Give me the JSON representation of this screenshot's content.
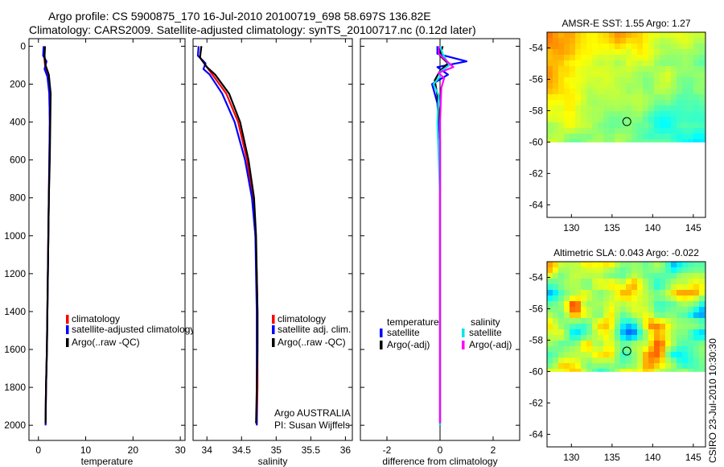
{
  "header": {
    "title_line1": "Argo profile: CS 5900875_170 16-Jul-2010 20100719_698 58.697S 136.82E",
    "title_line2": "Climatology: CARS2009. Satellite-adjusted climatology: synTS_20100717.nc (0.12d later)"
  },
  "side_label": "CSIRO 23-Jul-2010 10:30:30",
  "colors": {
    "climatology": "#ff0000",
    "satellite_adjusted": "#0000ff",
    "argo": "#000000",
    "salinity_satellite": "#00e5e5",
    "salinity_argo": "#ff00ff"
  },
  "chart_data": [
    {
      "id": "temperature",
      "type": "line",
      "xlabel": "temperature",
      "xlim": [
        -2,
        31
      ],
      "ylim": [
        2080,
        -40
      ],
      "xticks": [
        0,
        10,
        20,
        30
      ],
      "yticks": [
        0,
        200,
        400,
        600,
        800,
        1000,
        1200,
        1400,
        1600,
        1800,
        2000
      ],
      "legend": [
        {
          "label": "climatology",
          "color": "#ff0000"
        },
        {
          "label": "satellite-adjusted climatology",
          "color": "#0000ff"
        },
        {
          "label": "Argo(..raw -QC)",
          "color": "#000000"
        }
      ],
      "series": [
        {
          "name": "climatology",
          "color": "#ff0000",
          "x": [
            1.3,
            1.2,
            1.4,
            2.0,
            2.3,
            2.4,
            2.3,
            2.2,
            2.1,
            2.0,
            1.9,
            1.8,
            1.6,
            1.5
          ],
          "y": [
            0,
            50,
            100,
            150,
            250,
            400,
            600,
            800,
            1000,
            1200,
            1400,
            1600,
            1800,
            2000
          ]
        },
        {
          "name": "satellite-adjusted",
          "color": "#0000ff",
          "x": [
            1.1,
            1.0,
            1.7,
            1.3,
            1.9,
            2.3,
            2.4,
            2.3,
            2.2,
            2.1,
            2.0,
            1.9,
            1.8,
            1.6,
            1.5
          ],
          "y": [
            0,
            50,
            80,
            120,
            160,
            250,
            400,
            600,
            800,
            1000,
            1200,
            1400,
            1600,
            1800,
            2000
          ]
        },
        {
          "name": "Argo",
          "color": "#000000",
          "x": [
            1.4,
            1.3,
            1.5,
            2.2,
            2.6,
            2.5,
            2.4,
            2.2,
            2.1,
            2.0,
            1.9,
            1.8,
            1.6,
            1.5
          ],
          "y": [
            0,
            50,
            100,
            150,
            250,
            400,
            600,
            800,
            1000,
            1200,
            1400,
            1600,
            1800,
            1990
          ]
        }
      ]
    },
    {
      "id": "salinity",
      "type": "line",
      "xlabel": "salinity",
      "xlim": [
        33.8,
        36.1
      ],
      "ylim": [
        2080,
        -40
      ],
      "xticks": [
        34,
        34.5,
        35,
        35.5,
        36
      ],
      "legend": [
        {
          "label": "climatology",
          "color": "#ff0000"
        },
        {
          "label": "satellite adj. clim.",
          "color": "#0000ff"
        },
        {
          "label": "Argo(..raw -QC)",
          "color": "#000000"
        }
      ],
      "annotation": [
        "Argo AUSTRALIA",
        "PI: Susan Wijffels"
      ],
      "series": [
        {
          "name": "climatology",
          "color": "#ff0000",
          "x": [
            33.92,
            33.9,
            34.0,
            34.08,
            34.28,
            34.45,
            34.58,
            34.66,
            34.7,
            34.72,
            34.73,
            34.73,
            34.73,
            34.72
          ],
          "y": [
            0,
            60,
            110,
            150,
            250,
            400,
            600,
            800,
            1000,
            1200,
            1400,
            1600,
            1800,
            2000
          ]
        },
        {
          "name": "satellite-adjusted",
          "color": "#0000ff",
          "x": [
            33.88,
            33.87,
            33.98,
            33.95,
            34.04,
            34.22,
            34.4,
            34.55,
            34.65,
            34.7,
            34.71,
            34.72,
            34.72,
            34.72,
            34.72
          ],
          "y": [
            0,
            50,
            90,
            120,
            150,
            250,
            400,
            600,
            800,
            1000,
            1200,
            1400,
            1600,
            1800,
            2000
          ]
        },
        {
          "name": "Argo",
          "color": "#000000",
          "x": [
            33.92,
            33.9,
            34.0,
            34.12,
            34.32,
            34.48,
            34.6,
            34.68,
            34.71,
            34.72,
            34.73,
            34.73,
            34.72,
            34.71
          ],
          "y": [
            0,
            60,
            110,
            150,
            250,
            400,
            600,
            800,
            1000,
            1200,
            1400,
            1600,
            1800,
            1990
          ]
        }
      ]
    },
    {
      "id": "difference",
      "type": "line",
      "xlabel": "difference from climatology",
      "xlim": [
        -3.0,
        3.0
      ],
      "ylim": [
        2080,
        -40
      ],
      "xticks": [
        -2,
        0,
        2
      ],
      "legend_headers": [
        "temperature",
        "salinity"
      ],
      "legend": [
        {
          "label": "satellite",
          "color": "#0000ff"
        },
        {
          "label": "Argo(-adj)",
          "color": "#000000"
        },
        {
          "label": "satellite",
          "color": "#00e5e5"
        },
        {
          "label": "Argo(-adj)",
          "color": "#ff00ff"
        }
      ],
      "series": [
        {
          "name": "temperature satellite",
          "color": "#0000ff",
          "x": [
            -0.1,
            -0.1,
            1.0,
            -0.1,
            0.3,
            -0.3,
            -0.1,
            0.0,
            0.0,
            0.0,
            0.0,
            0.0,
            0.0,
            0.0
          ],
          "y": [
            0,
            40,
            80,
            110,
            150,
            200,
            300,
            500,
            800,
            1100,
            1400,
            1700,
            1900,
            2000
          ]
        },
        {
          "name": "temperature Argo",
          "color": "#000000",
          "x": [
            0.1,
            0.0,
            0.3,
            0.0,
            -0.2,
            -0.1,
            0.0,
            0.0,
            0.0,
            0.0,
            0.0,
            0.0,
            0.0
          ],
          "y": [
            0,
            50,
            90,
            130,
            180,
            260,
            400,
            700,
            1000,
            1300,
            1600,
            1900,
            1990
          ]
        },
        {
          "name": "salinity satellite",
          "color": "#00e5e5",
          "x": [
            0.0,
            0.1,
            0.35,
            -0.05,
            0.0,
            -0.25,
            -0.05,
            -0.1,
            -0.05,
            0.0,
            0.0,
            0.0,
            0.0,
            0.0
          ],
          "y": [
            0,
            40,
            100,
            140,
            160,
            200,
            260,
            400,
            600,
            800,
            1100,
            1500,
            1800,
            2000
          ]
        },
        {
          "name": "salinity Argo",
          "color": "#ff00ff",
          "x": [
            -0.05,
            -0.05,
            0.5,
            -0.05,
            0.15,
            0.05,
            0.0,
            0.0,
            0.0,
            0.0,
            0.0,
            0.0
          ],
          "y": [
            0,
            40,
            110,
            140,
            170,
            220,
            400,
            700,
            1000,
            1400,
            1800,
            1990
          ]
        }
      ]
    },
    {
      "id": "sst_map",
      "type": "heatmap",
      "title": "AMSR-E SST: 1.55 Argo: 1.27",
      "xlim": [
        127,
        146.5
      ],
      "ylim": [
        -64.8,
        -53
      ],
      "xticks": [
        130,
        135,
        140,
        145
      ],
      "yticks": [
        -54,
        -56,
        -58,
        -60,
        -62,
        -64
      ],
      "data_extent_lat": [
        -53,
        -60
      ],
      "marker": {
        "lon": 136.82,
        "lat": -58.697
      }
    },
    {
      "id": "sla_map",
      "type": "heatmap",
      "title": "Altimetric SLA: 0.043 Argo: -0.022",
      "xlim": [
        127,
        146.5
      ],
      "ylim": [
        -64.8,
        -53
      ],
      "xticks": [
        130,
        135,
        140,
        145
      ],
      "yticks": [
        -54,
        -56,
        -58,
        -60,
        -62,
        -64
      ],
      "data_extent_lat": [
        -53,
        -60
      ],
      "marker": {
        "lon": 136.82,
        "lat": -58.697
      }
    }
  ]
}
